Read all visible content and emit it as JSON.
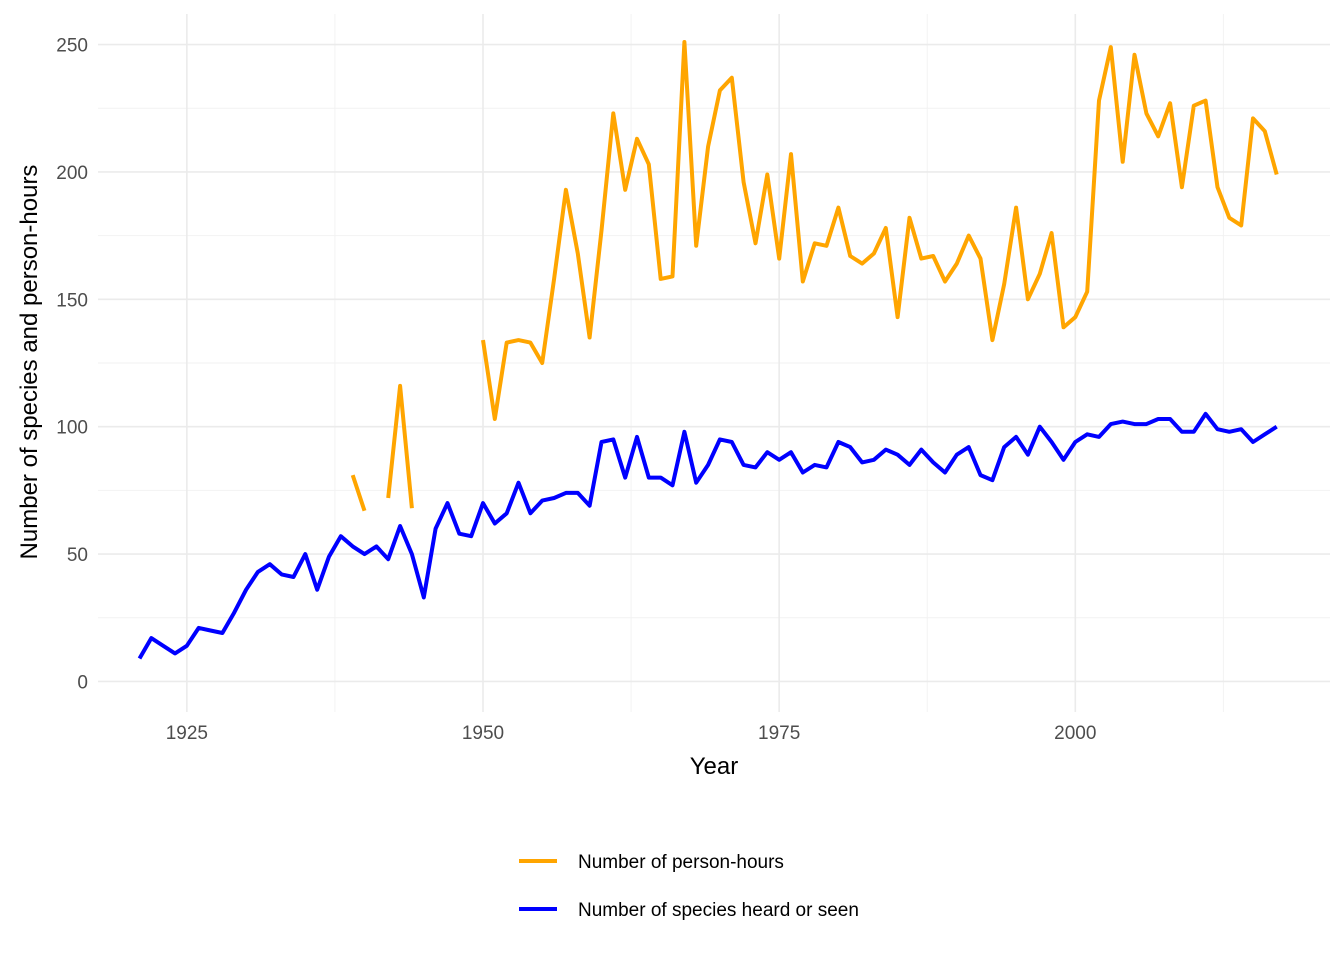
{
  "chart_data": {
    "type": "line",
    "xlabel": "Year",
    "ylabel": "Number of species and person-hours",
    "xlim": [
      1917.5,
      2021.5
    ],
    "ylim": [
      -12,
      262
    ],
    "x_ticks": [
      1925,
      1950,
      1975,
      2000
    ],
    "y_ticks": [
      0,
      50,
      100,
      150,
      200,
      250
    ],
    "grid": true,
    "legend_position": "bottom",
    "series": [
      {
        "name": "Number of person-hours",
        "color": "#FFA500",
        "points": [
          [
            1939,
            81
          ],
          [
            1940,
            67
          ],
          [
            1941,
            null
          ],
          [
            1942,
            72
          ],
          [
            1943,
            116
          ],
          [
            1944,
            68
          ],
          [
            1945,
            null
          ],
          [
            1946,
            null
          ],
          [
            1947,
            null
          ],
          [
            1948,
            null
          ],
          [
            1949,
            null
          ],
          [
            1950,
            134
          ],
          [
            1951,
            103
          ],
          [
            1952,
            133
          ],
          [
            1953,
            134
          ],
          [
            1954,
            133
          ],
          [
            1955,
            125
          ],
          [
            1956,
            158
          ],
          [
            1957,
            193
          ],
          [
            1958,
            168
          ],
          [
            1959,
            135
          ],
          [
            1960,
            177
          ],
          [
            1961,
            223
          ],
          [
            1962,
            193
          ],
          [
            1963,
            213
          ],
          [
            1964,
            203
          ],
          [
            1965,
            158
          ],
          [
            1966,
            159
          ],
          [
            1967,
            251
          ],
          [
            1968,
            171
          ],
          [
            1969,
            210
          ],
          [
            1970,
            232
          ],
          [
            1971,
            237
          ],
          [
            1972,
            196
          ],
          [
            1973,
            172
          ],
          [
            1974,
            199
          ],
          [
            1975,
            166
          ],
          [
            1976,
            207
          ],
          [
            1977,
            157
          ],
          [
            1978,
            172
          ],
          [
            1979,
            171
          ],
          [
            1980,
            186
          ],
          [
            1981,
            167
          ],
          [
            1982,
            164
          ],
          [
            1983,
            168
          ],
          [
            1984,
            178
          ],
          [
            1985,
            143
          ],
          [
            1986,
            182
          ],
          [
            1987,
            166
          ],
          [
            1988,
            167
          ],
          [
            1989,
            157
          ],
          [
            1990,
            164
          ],
          [
            1991,
            175
          ],
          [
            1992,
            166
          ],
          [
            1993,
            134
          ],
          [
            1994,
            156
          ],
          [
            1995,
            186
          ],
          [
            1996,
            150
          ],
          [
            1997,
            160
          ],
          [
            1998,
            176
          ],
          [
            1999,
            139
          ],
          [
            2000,
            143
          ],
          [
            2001,
            153
          ],
          [
            2002,
            228
          ],
          [
            2003,
            249
          ],
          [
            2004,
            204
          ],
          [
            2005,
            246
          ],
          [
            2006,
            223
          ],
          [
            2007,
            214
          ],
          [
            2008,
            227
          ],
          [
            2009,
            194
          ],
          [
            2010,
            226
          ],
          [
            2011,
            228
          ],
          [
            2012,
            194
          ],
          [
            2013,
            182
          ],
          [
            2014,
            179
          ],
          [
            2015,
            221
          ],
          [
            2016,
            216
          ],
          [
            2017,
            199
          ]
        ]
      },
      {
        "name": "Number of species heard or seen",
        "color": "#0000FF",
        "points": [
          [
            1921,
            9
          ],
          [
            1922,
            17
          ],
          [
            1923,
            14
          ],
          [
            1924,
            11
          ],
          [
            1925,
            14
          ],
          [
            1926,
            21
          ],
          [
            1927,
            20
          ],
          [
            1928,
            19
          ],
          [
            1929,
            27
          ],
          [
            1930,
            36
          ],
          [
            1931,
            43
          ],
          [
            1932,
            46
          ],
          [
            1933,
            42
          ],
          [
            1934,
            41
          ],
          [
            1935,
            50
          ],
          [
            1936,
            36
          ],
          [
            1937,
            49
          ],
          [
            1938,
            57
          ],
          [
            1939,
            53
          ],
          [
            1940,
            50
          ],
          [
            1941,
            53
          ],
          [
            1942,
            48
          ],
          [
            1943,
            61
          ],
          [
            1944,
            50
          ],
          [
            1945,
            33
          ],
          [
            1946,
            60
          ],
          [
            1947,
            70
          ],
          [
            1948,
            58
          ],
          [
            1949,
            57
          ],
          [
            1950,
            70
          ],
          [
            1951,
            62
          ],
          [
            1952,
            66
          ],
          [
            1953,
            78
          ],
          [
            1954,
            66
          ],
          [
            1955,
            71
          ],
          [
            1956,
            72
          ],
          [
            1957,
            74
          ],
          [
            1958,
            74
          ],
          [
            1959,
            69
          ],
          [
            1960,
            94
          ],
          [
            1961,
            95
          ],
          [
            1962,
            80
          ],
          [
            1963,
            96
          ],
          [
            1964,
            80
          ],
          [
            1965,
            80
          ],
          [
            1966,
            77
          ],
          [
            1967,
            98
          ],
          [
            1968,
            78
          ],
          [
            1969,
            85
          ],
          [
            1970,
            95
          ],
          [
            1971,
            94
          ],
          [
            1972,
            85
          ],
          [
            1973,
            84
          ],
          [
            1974,
            90
          ],
          [
            1975,
            87
          ],
          [
            1976,
            90
          ],
          [
            1977,
            82
          ],
          [
            1978,
            85
          ],
          [
            1979,
            84
          ],
          [
            1980,
            94
          ],
          [
            1981,
            92
          ],
          [
            1982,
            86
          ],
          [
            1983,
            87
          ],
          [
            1984,
            91
          ],
          [
            1985,
            89
          ],
          [
            1986,
            85
          ],
          [
            1987,
            91
          ],
          [
            1988,
            86
          ],
          [
            1989,
            82
          ],
          [
            1990,
            89
          ],
          [
            1991,
            92
          ],
          [
            1992,
            81
          ],
          [
            1993,
            79
          ],
          [
            1994,
            92
          ],
          [
            1995,
            96
          ],
          [
            1996,
            89
          ],
          [
            1997,
            100
          ],
          [
            1998,
            94
          ],
          [
            1999,
            87
          ],
          [
            2000,
            94
          ],
          [
            2001,
            97
          ],
          [
            2002,
            96
          ],
          [
            2003,
            101
          ],
          [
            2004,
            102
          ],
          [
            2005,
            101
          ],
          [
            2006,
            101
          ],
          [
            2007,
            103
          ],
          [
            2008,
            103
          ],
          [
            2009,
            98
          ],
          [
            2010,
            98
          ],
          [
            2011,
            105
          ],
          [
            2012,
            99
          ],
          [
            2013,
            98
          ],
          [
            2014,
            99
          ],
          [
            2015,
            94
          ],
          [
            2016,
            97
          ],
          [
            2017,
            100
          ]
        ]
      }
    ]
  }
}
